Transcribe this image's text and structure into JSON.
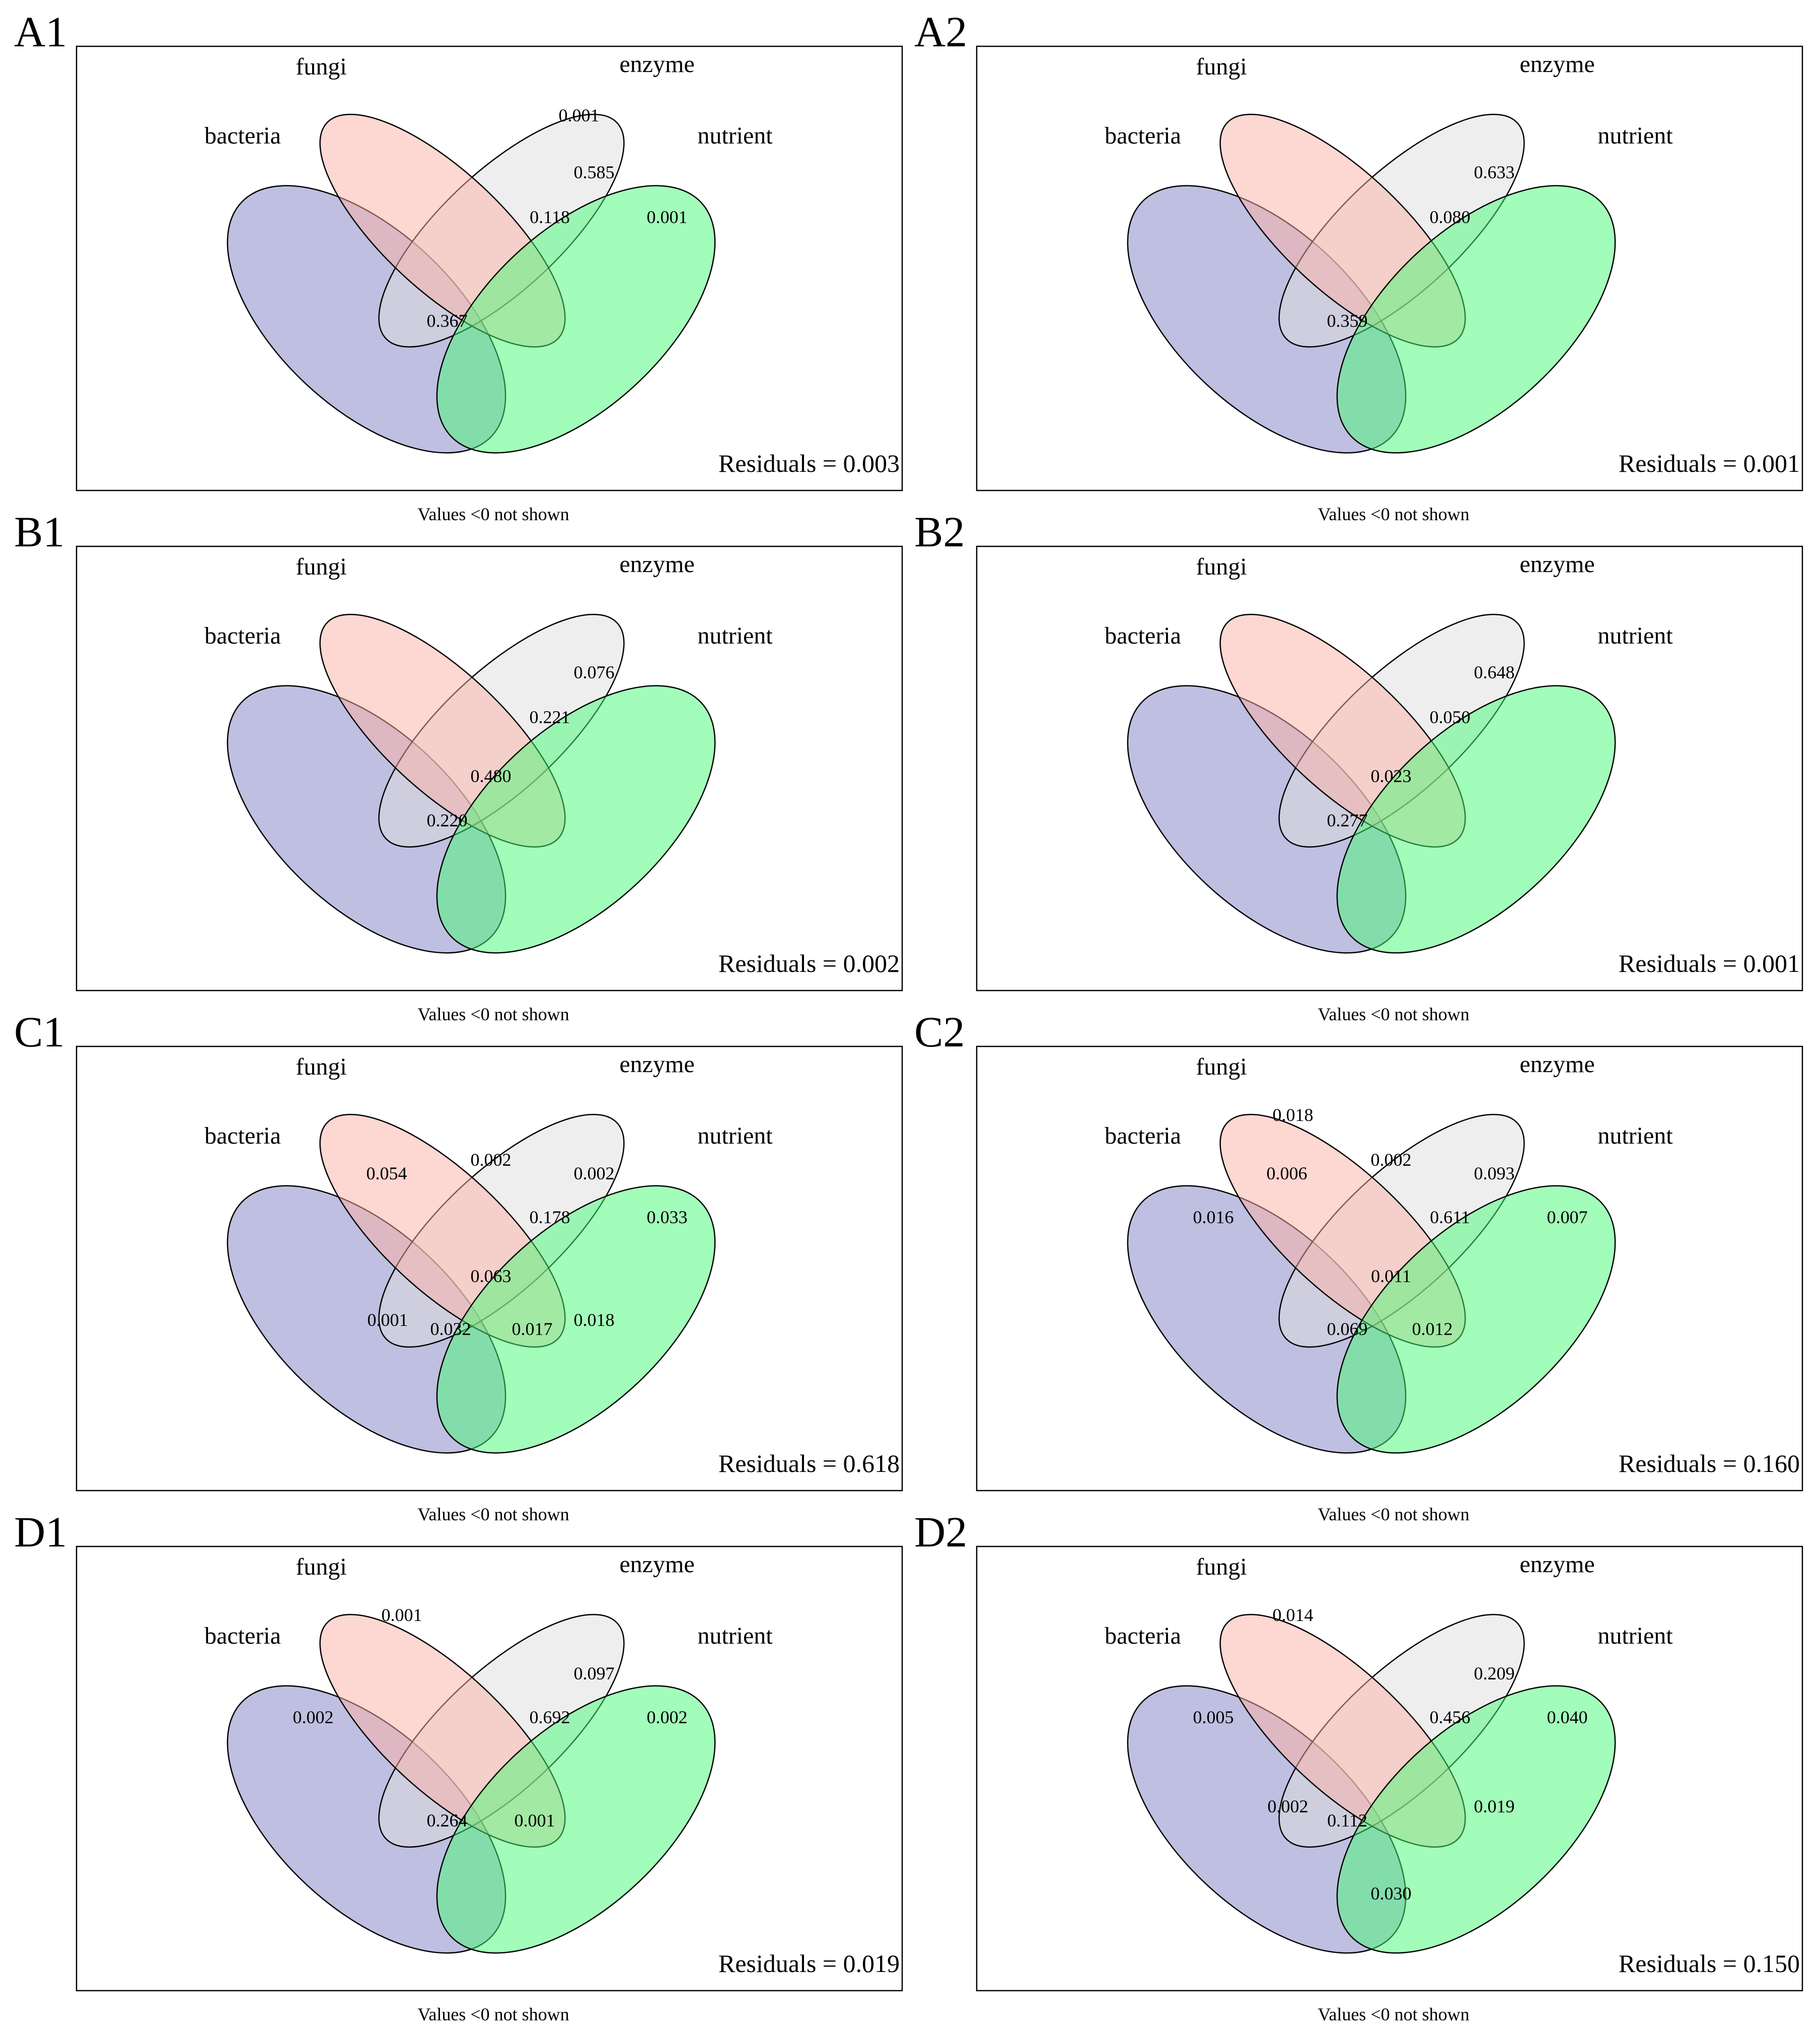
{
  "figure": {
    "sets": [
      {
        "key": "bacteria",
        "label": "bacteria",
        "color": "#8080c4"
      },
      {
        "key": "fungi",
        "label": "fungi",
        "color": "#fbb0a4"
      },
      {
        "key": "enzyme",
        "label": "enzyme",
        "color": "#dedede"
      },
      {
        "key": "nutrient",
        "label": "nutrient",
        "color": "#48fb76"
      }
    ],
    "note": "Values <0 not shown",
    "panels": [
      {
        "id": "A1",
        "label": "A1",
        "residuals": "Residuals = 0.003",
        "values": [
          {
            "region": "enzyme",
            "value": "0.001"
          },
          {
            "region": "enzyme-nutrient",
            "value": "0.585"
          },
          {
            "region": "fungi-enzyme-nutrient",
            "value": "0.118"
          },
          {
            "region": "nutrient",
            "value": "0.001"
          },
          {
            "region": "bacteria-enzyme-nutrient",
            "value": "0.367"
          }
        ]
      },
      {
        "id": "A2",
        "label": "A2",
        "residuals": "Residuals = 0.001",
        "values": [
          {
            "region": "enzyme-nutrient",
            "value": "0.633"
          },
          {
            "region": "fungi-enzyme-nutrient",
            "value": "0.080"
          },
          {
            "region": "bacteria-enzyme-nutrient",
            "value": "0.359"
          }
        ]
      },
      {
        "id": "B1",
        "label": "B1",
        "residuals": "Residuals = 0.002",
        "values": [
          {
            "region": "enzyme-nutrient",
            "value": "0.076"
          },
          {
            "region": "fungi-enzyme-nutrient",
            "value": "0.221"
          },
          {
            "region": "all",
            "value": "0.480"
          },
          {
            "region": "bacteria-enzyme-nutrient",
            "value": "0.220"
          }
        ]
      },
      {
        "id": "B2",
        "label": "B2",
        "residuals": "Residuals = 0.001",
        "values": [
          {
            "region": "enzyme-nutrient",
            "value": "0.648"
          },
          {
            "region": "fungi-enzyme-nutrient",
            "value": "0.050"
          },
          {
            "region": "all",
            "value": "0.023"
          },
          {
            "region": "bacteria-enzyme-nutrient",
            "value": "0.277"
          }
        ]
      },
      {
        "id": "C1",
        "label": "C1",
        "residuals": "Residuals = 0.618",
        "values": [
          {
            "region": "bacteria-fungi",
            "value": "0.054"
          },
          {
            "region": "fungi-enzyme",
            "value": "0.002"
          },
          {
            "region": "enzyme-nutrient",
            "value": "0.002"
          },
          {
            "region": "fungi-enzyme-nutrient",
            "value": "0.178"
          },
          {
            "region": "nutrient",
            "value": "0.033"
          },
          {
            "region": "all",
            "value": "0.063"
          },
          {
            "region": "bacteria-enzyme",
            "value": "0.001"
          },
          {
            "region": "fungi-nutrient",
            "value": "0.018"
          },
          {
            "region": "bacteria-enzyme-nutrient",
            "value": "0.032"
          },
          {
            "region": "bacteria-fungi-nutrient",
            "value": "0.017"
          }
        ]
      },
      {
        "id": "C2",
        "label": "C2",
        "residuals": "Residuals = 0.160",
        "values": [
          {
            "region": "fungi",
            "value": "0.018"
          },
          {
            "region": "bacteria-fungi",
            "value": "0.006"
          },
          {
            "region": "fungi-enzyme",
            "value": "0.002"
          },
          {
            "region": "enzyme-nutrient",
            "value": "0.093"
          },
          {
            "region": "bacteria",
            "value": "0.016"
          },
          {
            "region": "fungi-enzyme-nutrient",
            "value": "0.611"
          },
          {
            "region": "nutrient",
            "value": "0.007"
          },
          {
            "region": "all",
            "value": "0.011"
          },
          {
            "region": "bacteria-enzyme-nutrient",
            "value": "0.069"
          },
          {
            "region": "bacteria-fungi-nutrient",
            "value": "0.012"
          }
        ]
      },
      {
        "id": "D1",
        "label": "D1",
        "residuals": "Residuals = 0.019",
        "values": [
          {
            "region": "fungi",
            "value": "0.001"
          },
          {
            "region": "enzyme-nutrient",
            "value": "0.097"
          },
          {
            "region": "bacteria",
            "value": "0.002"
          },
          {
            "region": "fungi-enzyme-nutrient",
            "value": "0.692"
          },
          {
            "region": "nutrient",
            "value": "0.002"
          },
          {
            "region": "bacteria-enzyme-nutrient",
            "value": "0.264"
          },
          {
            "region": "bacteria-fungi-nutrient",
            "value": "0.001"
          }
        ]
      },
      {
        "id": "D2",
        "label": "D2",
        "residuals": "Residuals = 0.150",
        "values": [
          {
            "region": "fungi",
            "value": "0.014"
          },
          {
            "region": "enzyme-nutrient",
            "value": "0.209"
          },
          {
            "region": "bacteria",
            "value": "0.005"
          },
          {
            "region": "fungi-enzyme-nutrient",
            "value": "0.456"
          },
          {
            "region": "nutrient",
            "value": "0.040"
          },
          {
            "region": "bacteria-enzyme",
            "value": "0.002"
          },
          {
            "region": "fungi-nutrient",
            "value": "0.019"
          },
          {
            "region": "bacteria-enzyme-nutrient",
            "value": "0.112"
          },
          {
            "region": "bacteria-nutrient",
            "value": "0.030"
          }
        ]
      }
    ]
  }
}
